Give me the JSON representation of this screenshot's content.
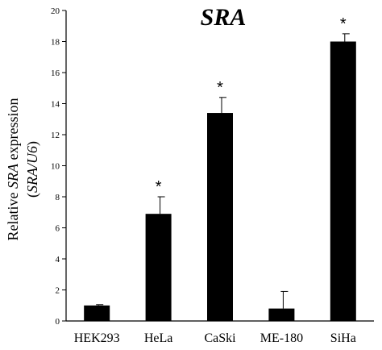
{
  "chart_data": {
    "type": "bar",
    "title": "SRA",
    "ylabel_line1": {
      "pre": "Relative ",
      "italic": "SRA",
      "post": " expression"
    },
    "ylabel_line2": {
      "pre": "(",
      "italic": "SRA/U6",
      "post": ")"
    },
    "categories": [
      "HEK293",
      "HeLa",
      "CaSki",
      "ME-180",
      "SiHa"
    ],
    "values": [
      1.0,
      6.9,
      13.4,
      0.8,
      18.0
    ],
    "errors": [
      0.05,
      1.1,
      1.0,
      1.1,
      0.5
    ],
    "significance": [
      "",
      "*",
      "*",
      "",
      "*"
    ],
    "ylim": [
      0,
      20
    ],
    "yticks": [
      0,
      2,
      4,
      6,
      8,
      10,
      12,
      14,
      16,
      18,
      20
    ],
    "grid": false,
    "bar_color": "#000000"
  }
}
